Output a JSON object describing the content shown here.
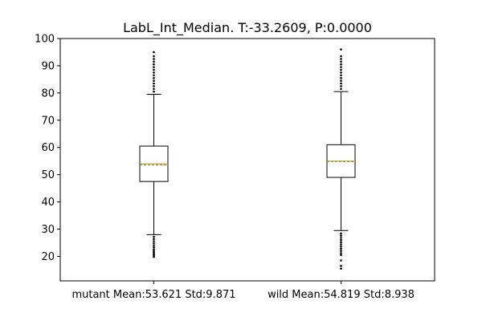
{
  "chart_data": {
    "type": "box",
    "title": "LabL_Int_Median. T:-33.2609, P:0.0000",
    "xlabel": "",
    "ylabel": "",
    "ylim": [
      11,
      100
    ],
    "yticks": [
      20,
      30,
      40,
      50,
      60,
      70,
      80,
      90,
      100
    ],
    "grid": false,
    "categories": [
      "mutant Mean:53.621 Std:9.871",
      "wild Mean:54.819 Std:8.938"
    ],
    "boxes": [
      {
        "whisker_low": 28,
        "q1": 47.5,
        "median": 54,
        "mean": 53.621,
        "q3": 60.5,
        "whisker_high": 79.5,
        "outliers_low": [
          19.8,
          20.2,
          20.6,
          21,
          21.5,
          22,
          22.6,
          23.3,
          24,
          24.8,
          25.6,
          26.4,
          27.2
        ],
        "outliers_high": [
          80.5,
          81.5,
          82.5,
          83.5,
          84.5,
          85.5,
          86.5,
          87.5,
          88.5,
          89.5,
          90.5,
          91.5,
          92.5,
          93.5,
          95
        ]
      },
      {
        "whisker_low": 29.5,
        "q1": 49,
        "median": 55,
        "mean": 54.819,
        "q3": 61,
        "whisker_high": 80.5,
        "outliers_low": [
          15.5,
          16.5,
          18.5,
          20.5,
          21.2,
          22,
          22.8,
          23.6,
          24.4,
          25.2,
          26,
          26.8,
          27.6,
          28.4
        ],
        "outliers_high": [
          81.5,
          82.5,
          83.5,
          84.5,
          85.5,
          86.5,
          87.5,
          88.5,
          89.5,
          90.5,
          91.5,
          92.5,
          93.5,
          96
        ]
      }
    ],
    "colors": {
      "median": "#ff7f0e",
      "mean_line": "#2ca02c",
      "box": "#000000"
    }
  }
}
